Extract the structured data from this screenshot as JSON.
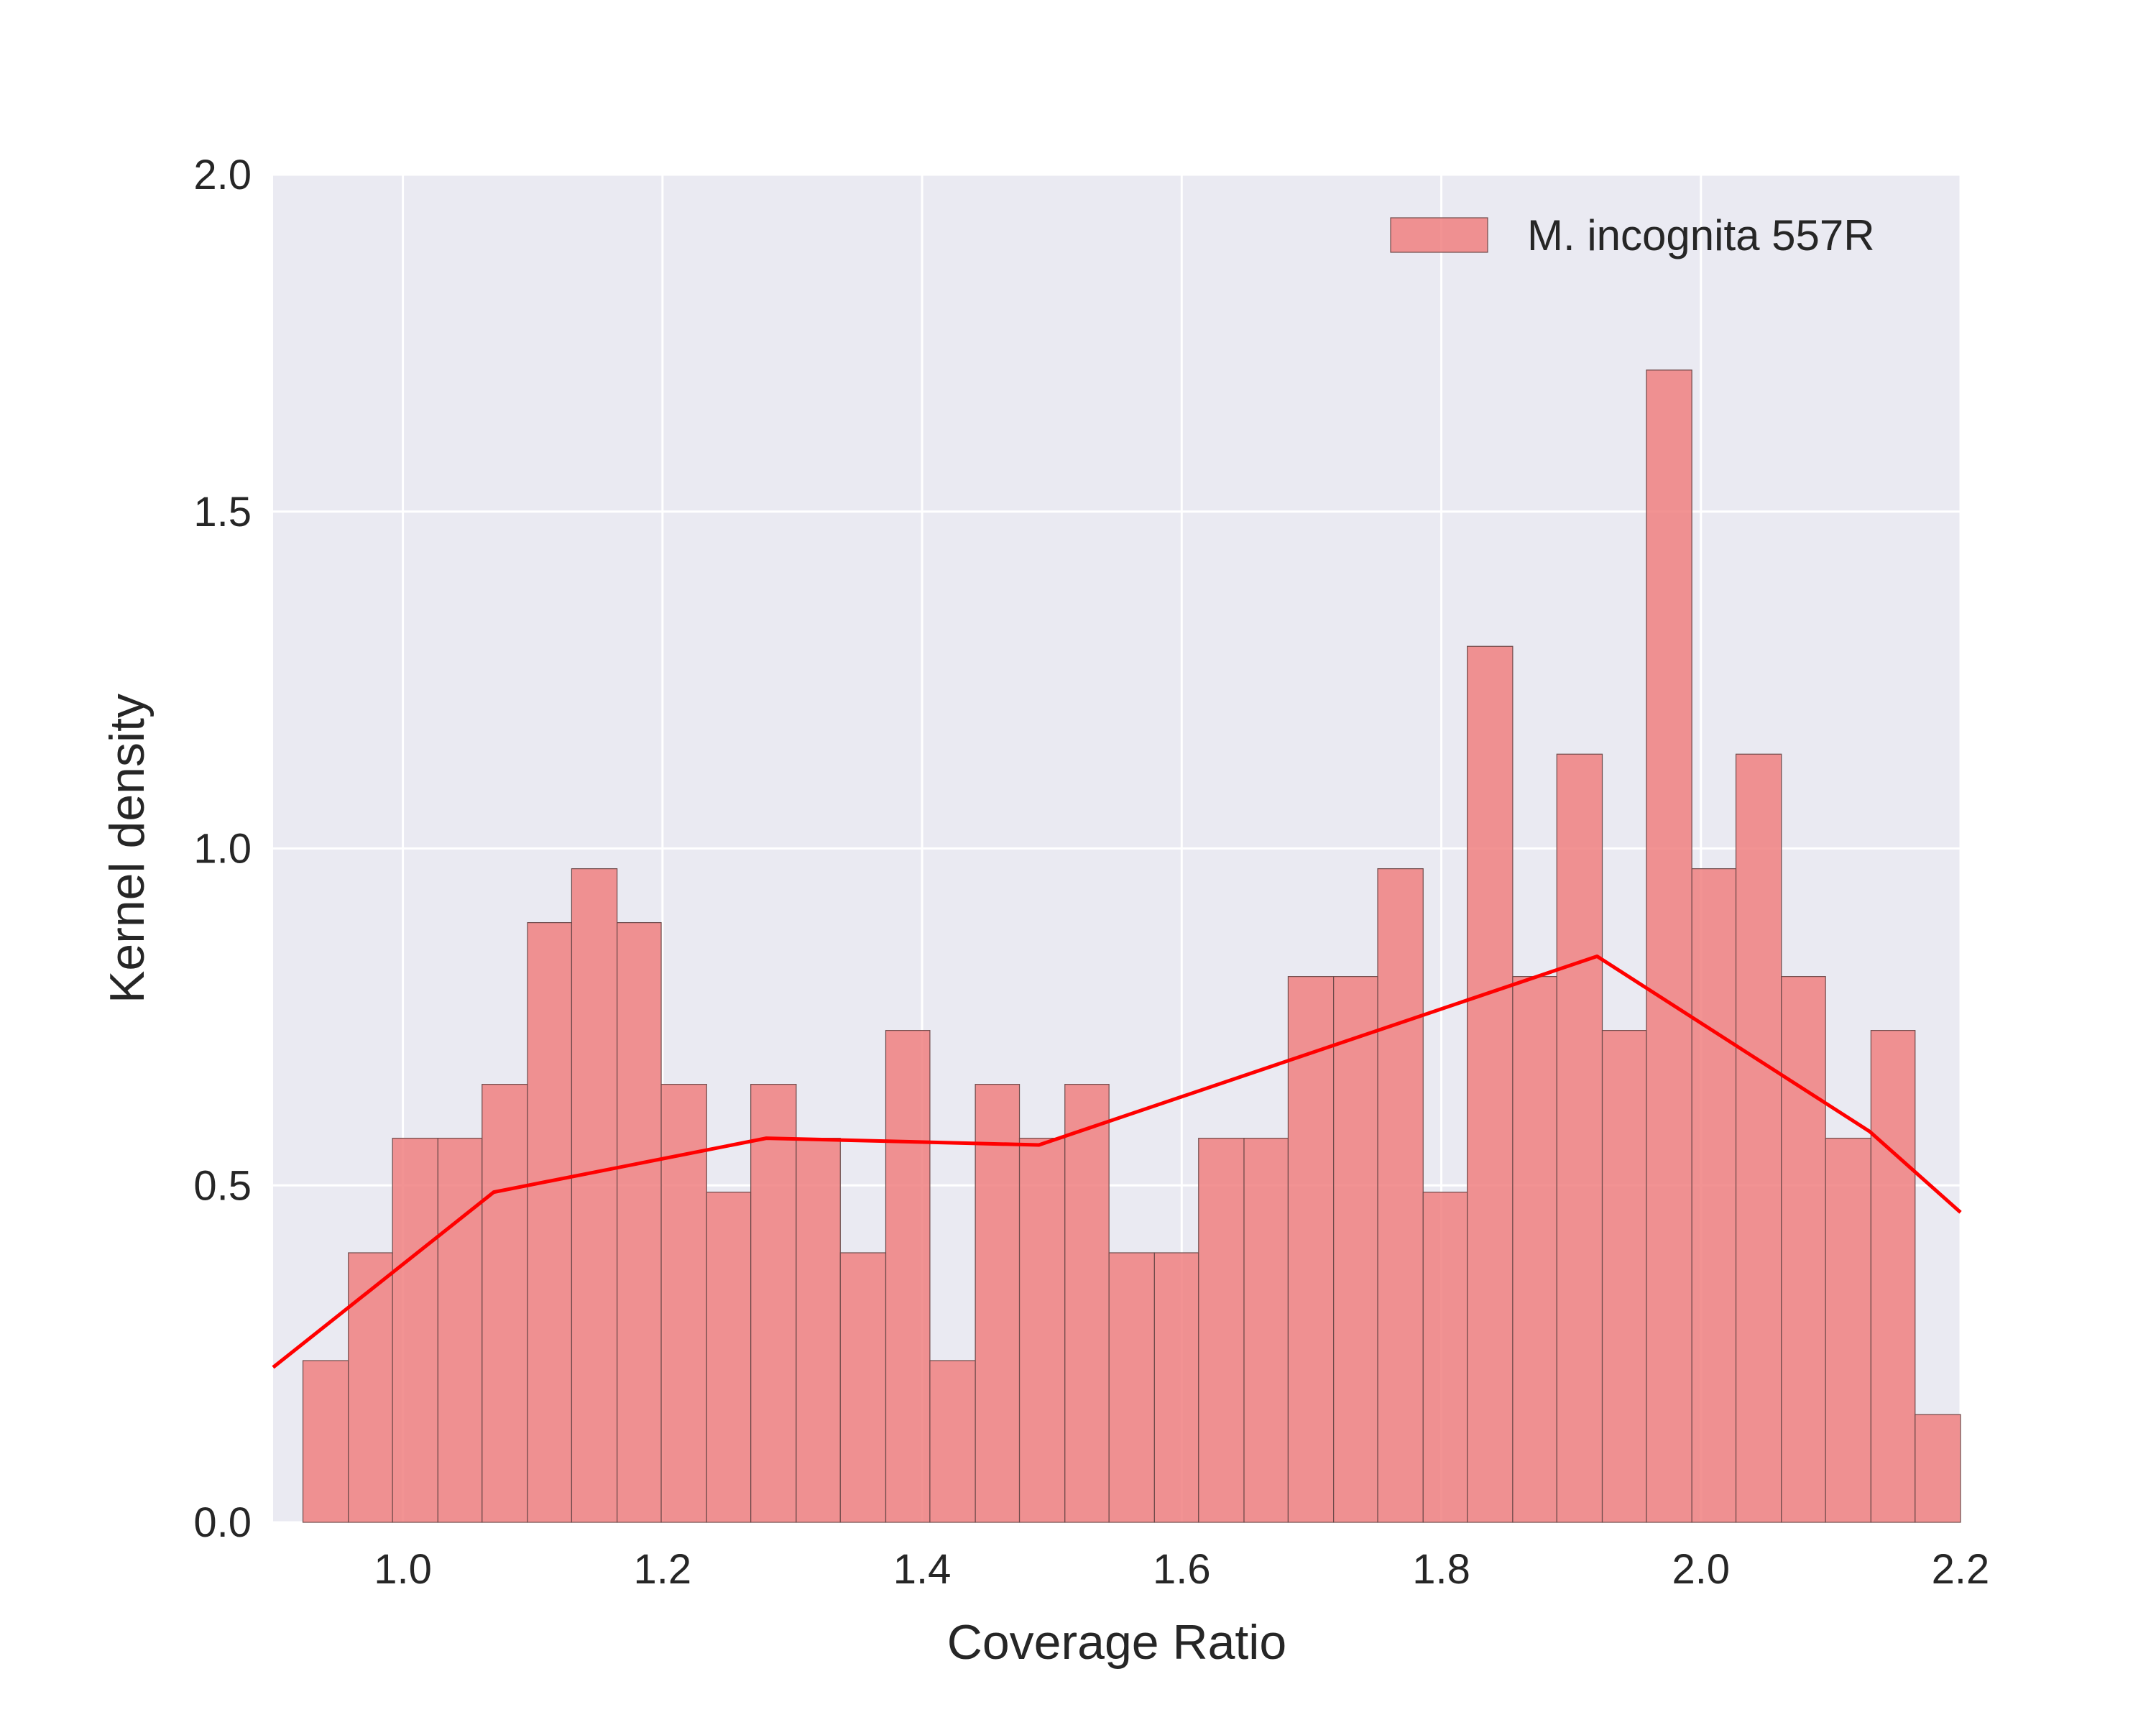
{
  "chart_data": {
    "type": "bar",
    "title": "",
    "xlabel": "Coverage Ratio",
    "ylabel": "Kernel density",
    "xlim": [
      0.9,
      2.2
    ],
    "ylim": [
      0.0,
      2.0
    ],
    "xticks": [
      "1.0",
      "1.2",
      "1.4",
      "1.6",
      "1.8",
      "2.0",
      "2.2"
    ],
    "yticks": [
      "0.0",
      "0.5",
      "1.0",
      "1.5",
      "2.0"
    ],
    "grid": true,
    "legend_position": "top-right",
    "bin_edges": [
      0.923,
      0.958,
      0.992,
      1.027,
      1.061,
      1.096,
      1.13,
      1.165,
      1.199,
      1.234,
      1.268,
      1.303,
      1.337,
      1.372,
      1.406,
      1.441,
      1.475,
      1.51,
      1.544,
      1.579,
      1.613,
      1.648,
      1.682,
      1.717,
      1.751,
      1.786,
      1.82,
      1.855,
      1.889,
      1.924,
      1.958,
      1.993,
      2.027,
      2.062,
      2.096,
      2.131,
      2.165,
      2.2
    ],
    "series": [
      {
        "name": "M. incognita 557R",
        "kind": "histogram",
        "color": "#f08080",
        "values": [
          0.24,
          0.4,
          0.57,
          0.57,
          0.65,
          0.89,
          0.97,
          0.89,
          0.65,
          0.49,
          0.65,
          0.57,
          0.4,
          0.73,
          0.24,
          0.65,
          0.57,
          0.65,
          0.4,
          0.4,
          0.57,
          0.57,
          0.81,
          0.81,
          0.97,
          0.49,
          1.3,
          0.81,
          1.14,
          0.73,
          1.71,
          0.97,
          1.14,
          0.81,
          0.57,
          0.73,
          0.16
        ]
      },
      {
        "name": "",
        "kind": "line",
        "color": "#ff0000",
        "x": [
          0.9,
          1.07,
          1.28,
          1.49,
          1.92,
          2.13,
          2.2
        ],
        "y": [
          0.23,
          0.49,
          0.57,
          0.56,
          0.84,
          0.58,
          0.46
        ]
      }
    ]
  }
}
